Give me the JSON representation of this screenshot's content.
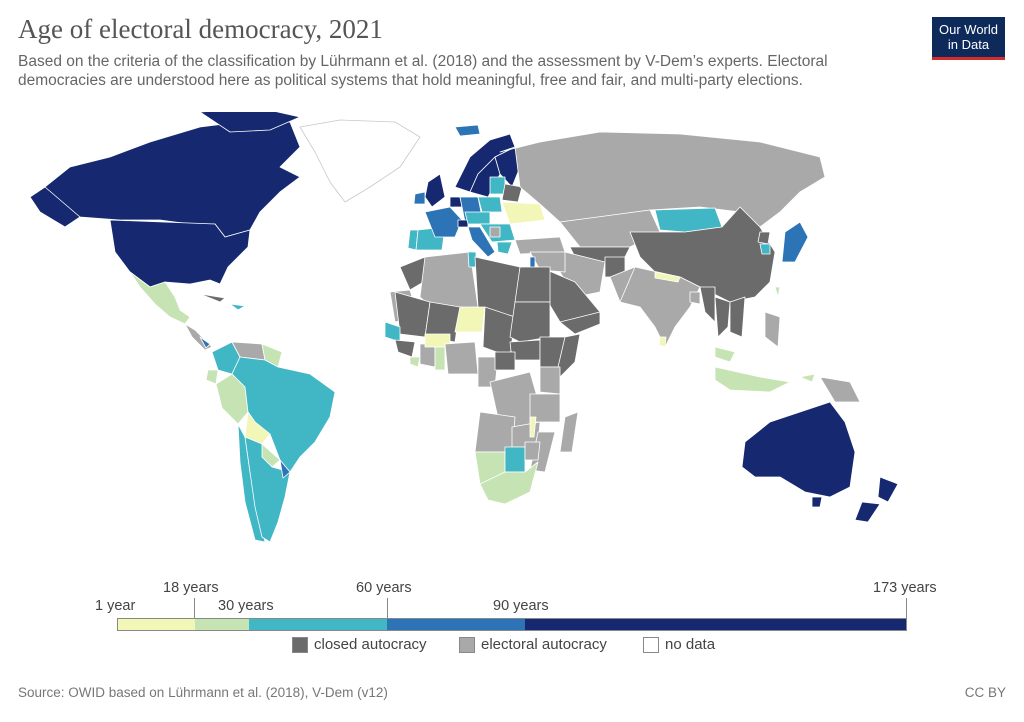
{
  "header": {
    "title": "Age of electoral democracy, 2021",
    "subtitle": "Based on the criteria of the classification by Lührmann et al. (2018) and the assessment by V-Dem’s experts. Electoral democracies are understood here as political systems that hold meaningful, free and fair, and multi-party elections.",
    "logo_line1": "Our World",
    "logo_line2": "in Data"
  },
  "legend": {
    "labels": [
      "1 year",
      "18 years",
      "30 years",
      "60 years",
      "90 years",
      "173 years"
    ],
    "scale_colors": [
      "#f2f6b6",
      "#c6e3b4",
      "#41b6c4",
      "#2c74b5",
      "#162870"
    ],
    "categories": [
      {
        "label": "closed autocracy",
        "color": "#6b6b6b"
      },
      {
        "label": "electoral autocracy",
        "color": "#a9a9a9"
      },
      {
        "label": "no data",
        "color": "#ffffff"
      }
    ]
  },
  "footer": {
    "source": "Source: OWID based on Lührmann et al. (2018), V-Dem (v12)",
    "license": "CC BY"
  }
}
